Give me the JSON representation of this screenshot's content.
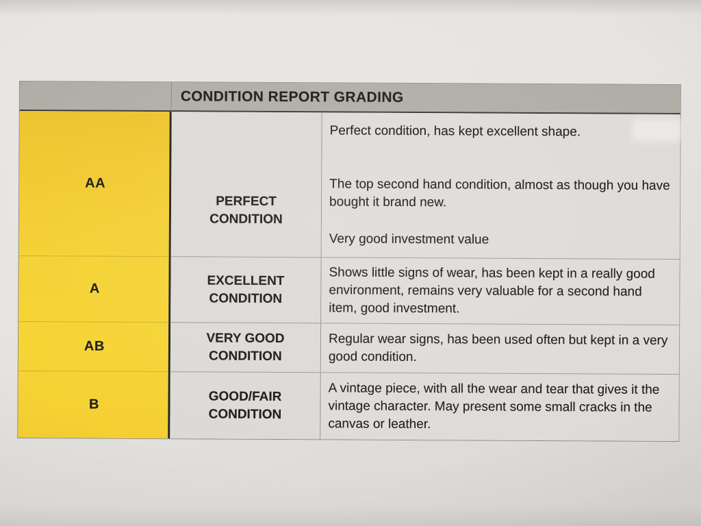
{
  "document": {
    "title": "CONDITION REPORT GRADING",
    "rows": [
      {
        "grade": "AA",
        "condition": "PERFECT CONDITION",
        "description_paragraphs": [
          "Perfect condition, has kept excellent shape.",
          "The top second hand condition, almost as though you have bought it brand new.",
          "Very good investment value"
        ]
      },
      {
        "grade": "A",
        "condition": "EXCELLENT CONDITION",
        "description_paragraphs": [
          "Shows little signs of wear, has been kept in a really good environment, remains very valuable for a second hand item, good investment."
        ]
      },
      {
        "grade": "AB",
        "condition": "VERY GOOD CONDITION",
        "description_paragraphs": [
          "Regular wear signs, has been used often but kept in a very good condition."
        ]
      },
      {
        "grade": "B",
        "condition": "GOOD/FAIR CONDITION",
        "description_paragraphs": [
          "A vintage piece, with all the wear and tear that gives it the vintage character. May present some small cracks in the canvas or leather."
        ]
      }
    ],
    "colors": {
      "grade_column_bg": "#F4CF32",
      "header_bg": "#B0ADA7",
      "cell_bg": "#DDDBD8",
      "heavy_divider": "#23211B",
      "text": "#1C1B19"
    }
  }
}
